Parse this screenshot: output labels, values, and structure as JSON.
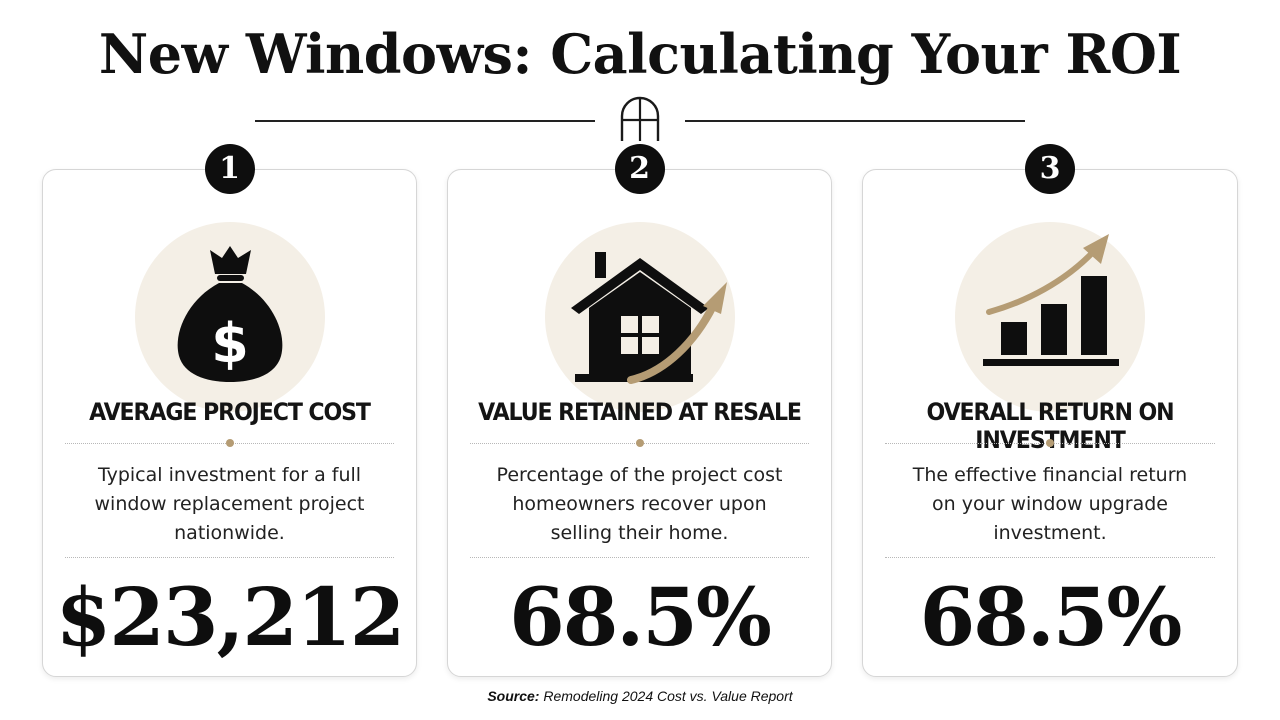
{
  "title": "New Windows: Calculating Your ROI",
  "cards": [
    {
      "number": "1",
      "icon": "money-bag-icon",
      "heading": "AVERAGE PROJECT COST",
      "description": "Typical investment for a full window replacement project nationwide.",
      "value": "$23,212"
    },
    {
      "number": "2",
      "icon": "house-growth-icon",
      "heading": "VALUE RETAINED AT RESALE",
      "description": "Percentage of the project cost homeowners recover upon selling their home.",
      "value": "68.5%"
    },
    {
      "number": "3",
      "icon": "growth-chart-icon",
      "heading": "OVERALL RETURN ON INVESTMENT",
      "description": "The effective financial return on your window upgrade investment.",
      "value": "68.5%"
    }
  ],
  "source": {
    "label": "Source:",
    "text": "Remodeling 2024 Cost vs. Value Report"
  },
  "colors": {
    "accent_gold": "#b59c74",
    "icon_bg": "#f4efe6",
    "ink": "#0e0e0e"
  }
}
